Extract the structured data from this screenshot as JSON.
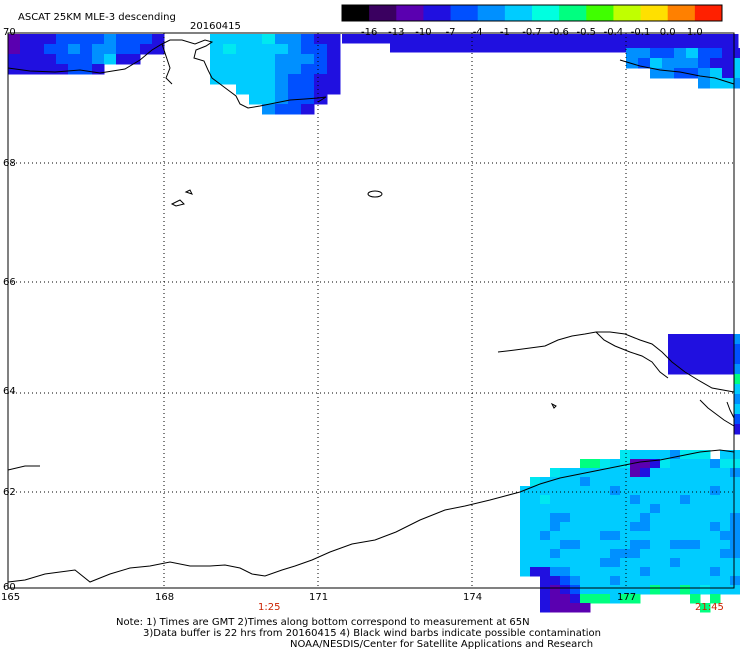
{
  "header": {
    "title": "ASCAT 25KM MLE-3 descending",
    "date": "20160415"
  },
  "colorbar": {
    "labels": [
      "-16",
      "-13",
      "-10",
      "-7",
      "-4",
      "-1",
      "-0.7",
      "-0.6",
      "-0.5",
      "-0.4",
      "-0.1",
      "0.0",
      "1.0"
    ],
    "colors": [
      "#000000",
      "#3a0060",
      "#5a00b0",
      "#2010e0",
      "#0050ff",
      "#0090ff",
      "#00ccff",
      "#00ffe0",
      "#00ff80",
      "#40ff00",
      "#c0ff00",
      "#ffe000",
      "#ff8000",
      "#ff2000"
    ]
  },
  "axes": {
    "lat_labels": [
      "70",
      "68",
      "66",
      "64",
      "62",
      "60"
    ],
    "lon_labels": [
      "165",
      "168",
      "171",
      "174",
      "177"
    ]
  },
  "times": {
    "left": "1:25",
    "right": "21:45"
  },
  "notes": {
    "line1": "Note: 1) Times are GMT 2)Times along bottom correspond to measurement at 65N",
    "line2": "3)Data buffer is 22 hrs from 20160415 4) Black wind barbs indicate possible contamination",
    "line3": "NOAA/NESDIS/Center for Satellite Applications and Research"
  }
}
